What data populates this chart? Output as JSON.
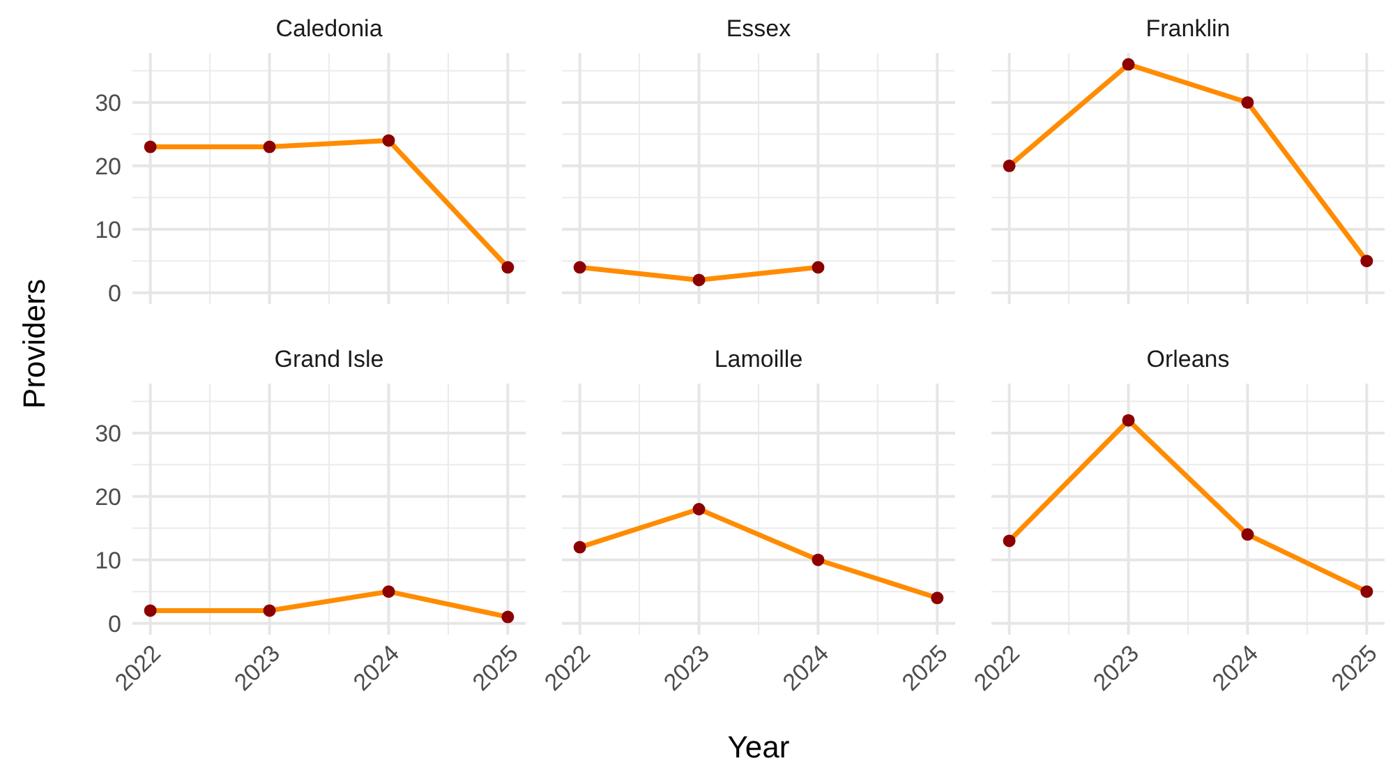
{
  "chart_data": [
    {
      "type": "line",
      "title": "Caledonia",
      "ylabel": "Providers",
      "x": [
        2022,
        2023,
        2024,
        2025
      ],
      "xlim": [
        2021.85,
        2025.15
      ],
      "xticks": [
        2022,
        2023,
        2024,
        2025
      ],
      "ylim": [
        -1.8,
        37.8
      ],
      "yticks": [
        0,
        10,
        20,
        30
      ],
      "grid": true,
      "tick_labels": "y",
      "series": [
        {
          "color": "#ff8c00",
          "values": [
            23,
            23,
            24,
            4
          ]
        },
        {
          "type": "scatter",
          "marker": "circle",
          "color": "#8b0000",
          "values": [
            23,
            23,
            24,
            4
          ]
        }
      ]
    },
    {
      "type": "line",
      "title": "Essex",
      "x": [
        2022,
        2023,
        2024
      ],
      "xlim": [
        2021.85,
        2025.15
      ],
      "xticks": [
        2022,
        2023,
        2024,
        2025
      ],
      "ylim": [
        -1.8,
        37.8
      ],
      "yticks": [
        0,
        10,
        20,
        30
      ],
      "grid": true,
      "tick_labels": false,
      "series": [
        {
          "color": "#ff8c00",
          "values": [
            4,
            2,
            4
          ]
        },
        {
          "type": "scatter",
          "marker": "circle",
          "color": "#8b0000",
          "values": [
            4,
            2,
            4
          ]
        }
      ]
    },
    {
      "type": "line",
      "title": "Franklin",
      "x": [
        2022,
        2023,
        2024,
        2025
      ],
      "xlim": [
        2021.85,
        2025.15
      ],
      "xticks": [
        2022,
        2023,
        2024,
        2025
      ],
      "ylim": [
        -1.8,
        37.8
      ],
      "yticks": [
        0,
        10,
        20,
        30
      ],
      "grid": true,
      "tick_labels": false,
      "series": [
        {
          "color": "#ff8c00",
          "values": [
            20,
            36,
            30,
            5
          ]
        },
        {
          "type": "scatter",
          "marker": "circle",
          "color": "#8b0000",
          "values": [
            20,
            36,
            30,
            5
          ]
        }
      ]
    },
    {
      "type": "line",
      "title": "Grand Isle",
      "x": [
        2022,
        2023,
        2024,
        2025
      ],
      "xlim": [
        2021.85,
        2025.15
      ],
      "xticks": [
        2022,
        2023,
        2024,
        2025
      ],
      "ylim": [
        -1.8,
        37.8
      ],
      "yticks": [
        0,
        10,
        20,
        30
      ],
      "grid": true,
      "series": [
        {
          "color": "#ff8c00",
          "values": [
            2,
            2,
            5,
            1
          ]
        },
        {
          "type": "scatter",
          "marker": "circle",
          "color": "#8b0000",
          "values": [
            2,
            2,
            5,
            1
          ]
        }
      ]
    },
    {
      "type": "line",
      "title": "Lamoille",
      "xlabel": "Year",
      "x": [
        2022,
        2023,
        2024,
        2025
      ],
      "xlim": [
        2021.85,
        2025.15
      ],
      "xticks": [
        2022,
        2023,
        2024,
        2025
      ],
      "ylim": [
        -1.8,
        37.8
      ],
      "yticks": [
        0,
        10,
        20,
        30
      ],
      "grid": true,
      "tick_labels": "x",
      "series": [
        {
          "color": "#ff8c00",
          "values": [
            12,
            18,
            10,
            4
          ]
        },
        {
          "type": "scatter",
          "marker": "circle",
          "color": "#8b0000",
          "values": [
            12,
            18,
            10,
            4
          ]
        }
      ]
    },
    {
      "type": "line",
      "title": "Orleans",
      "x": [
        2022,
        2023,
        2024,
        2025
      ],
      "xlim": [
        2021.85,
        2025.15
      ],
      "xticks": [
        2022,
        2023,
        2024,
        2025
      ],
      "ylim": [
        -1.8,
        37.8
      ],
      "yticks": [
        0,
        10,
        20,
        30
      ],
      "grid": true,
      "tick_labels": "x",
      "series": [
        {
          "color": "#ff8c00",
          "values": [
            13,
            32,
            14,
            5
          ]
        },
        {
          "type": "scatter",
          "marker": "circle",
          "color": "#8b0000",
          "values": [
            13,
            32,
            14,
            5
          ]
        }
      ]
    }
  ]
}
